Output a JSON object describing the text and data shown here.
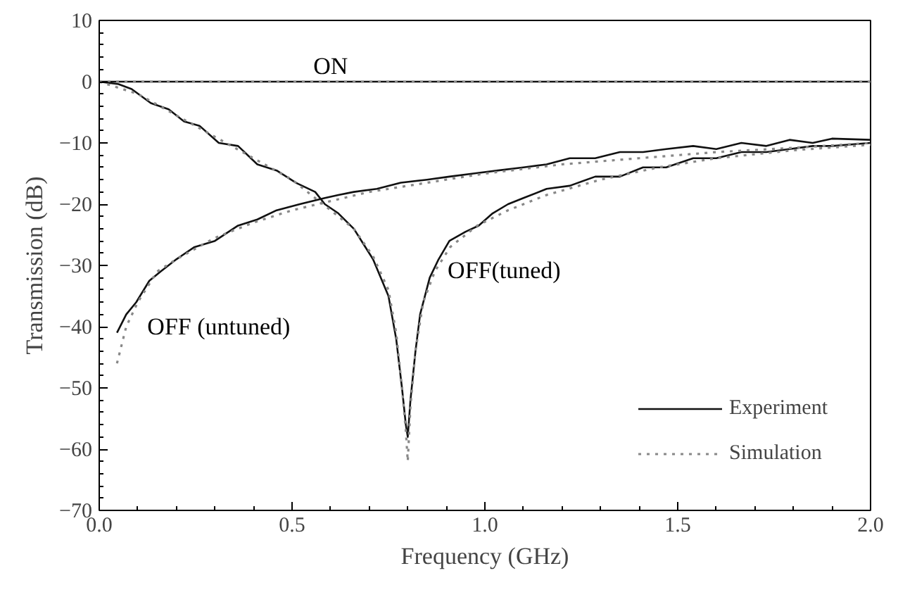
{
  "chart_data": {
    "type": "line",
    "xlabel": "Frequency (GHz)",
    "ylabel": "Transmission (dB)",
    "xlim": [
      0,
      2
    ],
    "ylim": [
      -70,
      10
    ],
    "xticks": [
      {
        "value": 0,
        "label": "0.0"
      },
      0.5,
      {
        "value": 1,
        "label": "1.0"
      },
      1.5,
      {
        "value": 2,
        "label": "2.0"
      }
    ],
    "yticks": [
      -70,
      -60,
      -50,
      -40,
      -30,
      -20,
      -10,
      0,
      10
    ],
    "grid": false,
    "legend": "bottom right",
    "marker": "none",
    "series": [
      {
        "name": "Experiment",
        "color": "#111111",
        "line_style": "solid",
        "x": [
          0,
          2
        ],
        "values": [
          0,
          0
        ]
      },
      {
        "name": "Simulation",
        "color": "#888888",
        "line_style": "dotted",
        "x": [
          0,
          2
        ],
        "values": [
          0,
          0
        ]
      },
      {
        "color": "#111111",
        "line_style": "solid",
        "x": [
          0,
          0.05,
          0.084,
          0.134,
          0.18,
          0.22,
          0.26,
          0.31,
          0.36,
          0.41,
          0.46,
          0.51,
          0.56,
          0.585,
          0.62,
          0.66,
          0.71,
          0.75,
          0.77,
          0.785,
          0.795,
          0.8,
          0.807,
          0.82,
          0.832,
          0.857,
          0.88,
          0.908,
          0.95,
          0.984,
          1.02,
          1.06,
          1.1,
          1.16,
          1.22,
          1.286,
          1.35,
          1.41,
          1.47,
          1.54,
          1.6,
          1.665,
          1.73,
          1.79,
          1.85,
          1.9,
          2.0
        ],
        "values": [
          0,
          -0.4,
          -1.2,
          -3.5,
          -4.5,
          -6.5,
          -7.2,
          -10,
          -10.5,
          -13.5,
          -14.5,
          -16.5,
          -18,
          -20,
          -21.5,
          -24,
          -29,
          -35,
          -42,
          -50,
          -56,
          -58,
          -52,
          -44,
          -38,
          -32,
          -29,
          -26,
          -24.5,
          -23.5,
          -21.5,
          -20,
          -19,
          -17.5,
          -17,
          -15.5,
          -15.5,
          -14,
          -14,
          -12.5,
          -12.5,
          -11.5,
          -11.5,
          -11,
          -10.5,
          -10.5,
          -10
        ]
      },
      {
        "color": "#888888",
        "line_style": "dotted",
        "x": [
          0,
          0.1,
          0.2,
          0.3,
          0.4,
          0.5,
          0.6,
          0.66,
          0.71,
          0.75,
          0.77,
          0.785,
          0.795,
          0.8,
          0.807,
          0.82,
          0.84,
          0.87,
          0.91,
          0.98,
          1.06,
          1.16,
          1.3,
          1.45,
          1.6,
          1.8,
          2.0
        ],
        "values": [
          0,
          -2,
          -5.5,
          -9,
          -12.5,
          -16,
          -21,
          -24,
          -28.5,
          -34,
          -41,
          -50,
          -57,
          -62,
          -53,
          -44,
          -36,
          -31,
          -27,
          -23.5,
          -21,
          -18.5,
          -16,
          -14,
          -12.5,
          -11.2,
          -10.3
        ]
      },
      {
        "color": "#111111",
        "line_style": "solid",
        "x": [
          0.046,
          0.07,
          0.096,
          0.13,
          0.159,
          0.2,
          0.247,
          0.3,
          0.36,
          0.41,
          0.46,
          0.52,
          0.585,
          0.62,
          0.66,
          0.72,
          0.782,
          0.85,
          0.908,
          0.97,
          1.034,
          1.1,
          1.16,
          1.22,
          1.286,
          1.35,
          1.41,
          1.47,
          1.54,
          1.6,
          1.665,
          1.73,
          1.79,
          1.85,
          1.9,
          2.0
        ],
        "values": [
          -41,
          -38,
          -36,
          -32.5,
          -31,
          -29,
          -27,
          -26,
          -23.5,
          -22.5,
          -21,
          -20,
          -19,
          -18.5,
          -18,
          -17.5,
          -16.5,
          -16,
          -15.5,
          -15,
          -14.5,
          -14,
          -13.5,
          -12.5,
          -12.5,
          -11.5,
          -11.5,
          -11,
          -10.5,
          -11,
          -10,
          -10.5,
          -9.5,
          -10,
          -9.3,
          -9.5
        ]
      },
      {
        "color": "#888888",
        "line_style": "dotted",
        "x": [
          0.046,
          0.07,
          0.1,
          0.15,
          0.2,
          0.3,
          0.4,
          0.5,
          0.6,
          0.7,
          0.8,
          1.0,
          1.2,
          1.4,
          1.6,
          1.8,
          2.0
        ],
        "values": [
          -46,
          -40,
          -36,
          -31,
          -29,
          -25.5,
          -23,
          -21,
          -19.5,
          -18,
          -17,
          -15,
          -13.5,
          -12.5,
          -11.5,
          -10.8,
          -10
        ]
      }
    ],
    "annotations": [
      "ON",
      "OFF (untuned)",
      "OFF(tuned)"
    ]
  }
}
